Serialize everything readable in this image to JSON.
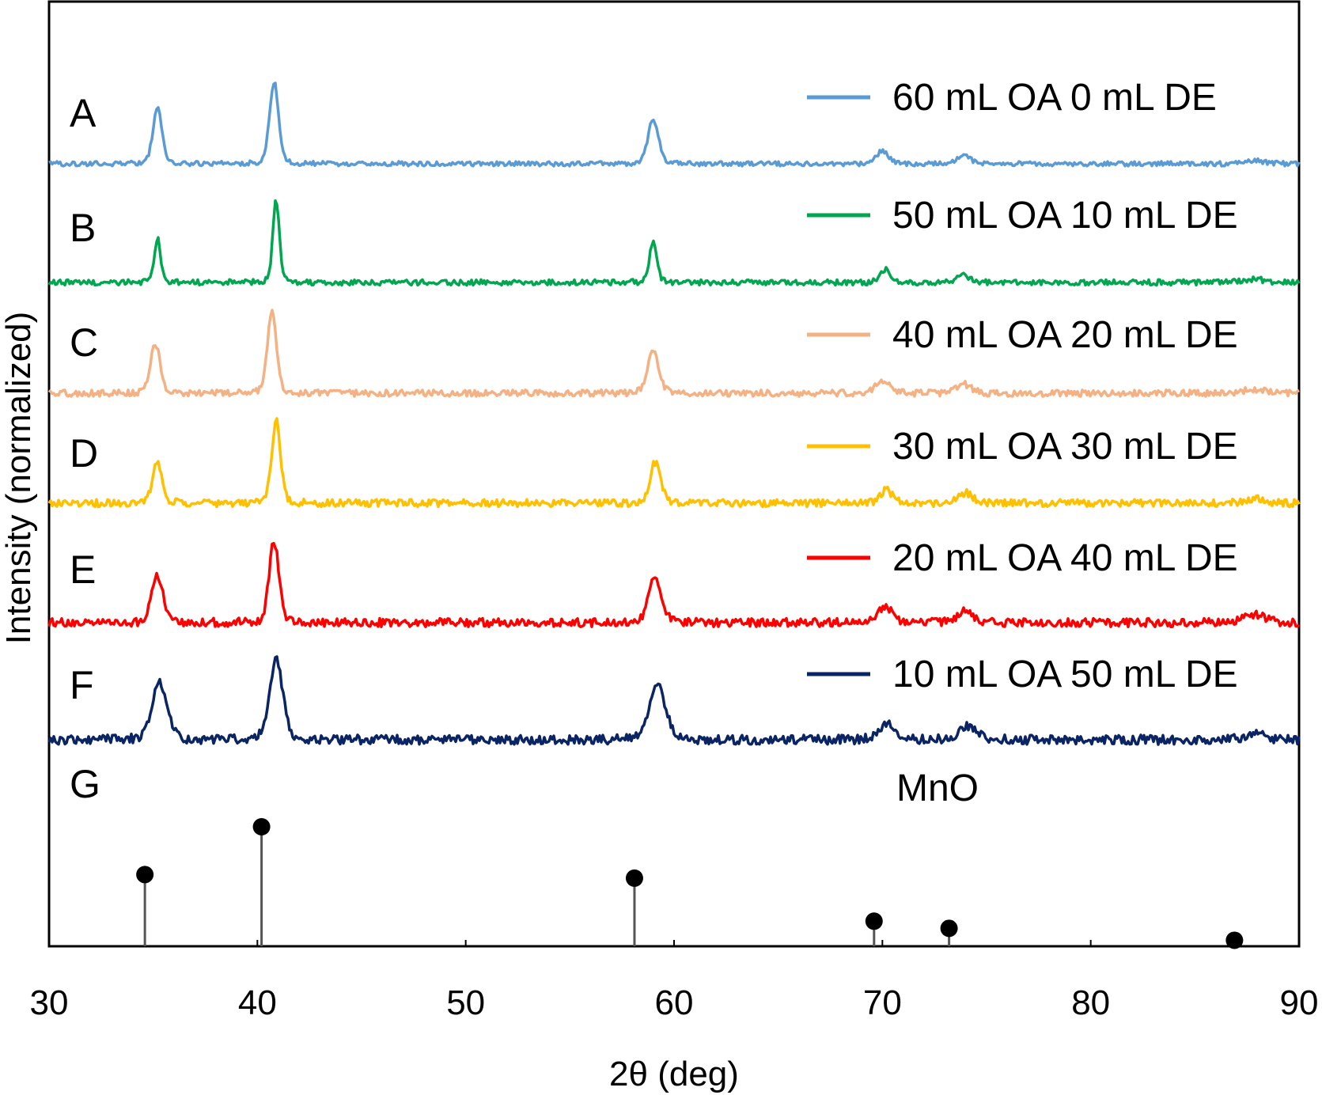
{
  "chart_data": {
    "type": "line",
    "title": "",
    "xlabel": "2θ (deg)",
    "ylabel": "Intensity (normalized)",
    "xlim": [
      30,
      90
    ],
    "xticks": [
      30,
      40,
      50,
      60,
      70,
      80,
      90
    ],
    "grid": false,
    "legend_position": "top-right",
    "series": [
      {
        "label": "A",
        "name": "60 mL OA 0 mL DE",
        "color": "#5b9bd5",
        "peaks": [
          {
            "x": 35.2,
            "h": 0.55,
            "w": 0.22
          },
          {
            "x": 40.8,
            "h": 0.8,
            "w": 0.22
          },
          {
            "x": 59.0,
            "h": 0.44,
            "w": 0.26
          },
          {
            "x": 70.0,
            "h": 0.12,
            "w": 0.32
          },
          {
            "x": 73.9,
            "h": 0.09,
            "w": 0.32
          },
          {
            "x": 87.9,
            "h": 0.03,
            "w": 0.5
          }
        ]
      },
      {
        "label": "B",
        "name": "50 mL OA 10 mL DE",
        "color": "#00a650",
        "peaks": [
          {
            "x": 35.2,
            "h": 0.43,
            "w": 0.16
          },
          {
            "x": 40.9,
            "h": 0.8,
            "w": 0.16
          },
          {
            "x": 59.0,
            "h": 0.4,
            "w": 0.18
          },
          {
            "x": 70.1,
            "h": 0.13,
            "w": 0.24
          },
          {
            "x": 73.9,
            "h": 0.08,
            "w": 0.26
          },
          {
            "x": 87.9,
            "h": 0.03,
            "w": 0.5
          }
        ]
      },
      {
        "label": "C",
        "name": "40 mL OA 20 mL DE",
        "color": "#f4b183",
        "peaks": [
          {
            "x": 35.1,
            "h": 0.49,
            "w": 0.24
          },
          {
            "x": 40.7,
            "h": 0.8,
            "w": 0.22
          },
          {
            "x": 59.0,
            "h": 0.42,
            "w": 0.28
          },
          {
            "x": 70.0,
            "h": 0.13,
            "w": 0.32
          },
          {
            "x": 73.9,
            "h": 0.09,
            "w": 0.35
          },
          {
            "x": 87.9,
            "h": 0.04,
            "w": 0.5
          }
        ]
      },
      {
        "label": "D",
        "name": "30 mL OA 30 mL DE",
        "color": "#ffc000",
        "peaks": [
          {
            "x": 35.2,
            "h": 0.4,
            "w": 0.24
          },
          {
            "x": 40.9,
            "h": 0.8,
            "w": 0.22
          },
          {
            "x": 59.1,
            "h": 0.4,
            "w": 0.26
          },
          {
            "x": 70.2,
            "h": 0.13,
            "w": 0.3
          },
          {
            "x": 74.0,
            "h": 0.1,
            "w": 0.32
          },
          {
            "x": 87.9,
            "h": 0.04,
            "w": 0.5
          }
        ]
      },
      {
        "label": "E",
        "name": "20 mL OA 40 mL DE",
        "color": "#ff0000",
        "peaks": [
          {
            "x": 35.2,
            "h": 0.45,
            "w": 0.28
          },
          {
            "x": 40.8,
            "h": 0.8,
            "w": 0.24
          },
          {
            "x": 59.1,
            "h": 0.45,
            "w": 0.32
          },
          {
            "x": 70.1,
            "h": 0.16,
            "w": 0.38
          },
          {
            "x": 74.0,
            "h": 0.11,
            "w": 0.38
          },
          {
            "x": 87.9,
            "h": 0.08,
            "w": 0.5
          }
        ]
      },
      {
        "label": "F",
        "name": "10 mL OA 50 mL DE",
        "color": "#0a2464",
        "peaks": [
          {
            "x": 35.3,
            "h": 0.55,
            "w": 0.38
          },
          {
            "x": 40.9,
            "h": 0.8,
            "w": 0.32
          },
          {
            "x": 59.2,
            "h": 0.52,
            "w": 0.4
          },
          {
            "x": 70.2,
            "h": 0.16,
            "w": 0.4
          },
          {
            "x": 74.1,
            "h": 0.13,
            "w": 0.42
          },
          {
            "x": 87.9,
            "h": 0.05,
            "w": 0.5
          }
        ]
      }
    ],
    "reference": {
      "label": "G",
      "name": "MnO",
      "positions": [
        34.6,
        40.2,
        58.1,
        69.6,
        73.2,
        86.9
      ],
      "relative_intensities": [
        60,
        100,
        57,
        21,
        15,
        5
      ]
    }
  }
}
